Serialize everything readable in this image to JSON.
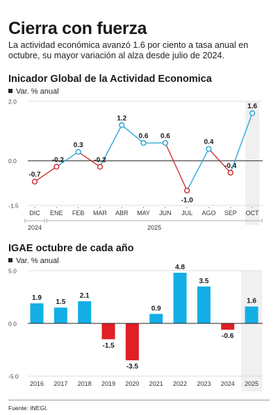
{
  "header": {
    "title": "Cierra con fuerza",
    "subtitle": "La actividad económica avanzó 1.6 por ciento a tasa anual en octubre, su mayor variación al alza desde julio de 2024."
  },
  "colors": {
    "positive_line": "#1fa3d6",
    "negative_line": "#cc2229",
    "positive_bar": "#14aee6",
    "negative_bar": "#e01f26",
    "highlight_band": "#f0f0f0"
  },
  "chart_data": [
    {
      "type": "line",
      "title": "Inicador Global de la Actividad Economica",
      "legend": "Var. % anual",
      "x": [
        "DIC",
        "ENE",
        "FEB",
        "MAR",
        "ABR",
        "MAY",
        "JUN",
        "JUL",
        "AGO",
        "SEP",
        "OCT"
      ],
      "values": [
        -0.7,
        -0.2,
        0.3,
        -0.2,
        1.2,
        0.6,
        0.6,
        -1.0,
        0.4,
        -0.4,
        1.6
      ],
      "data_labels": [
        "-0.7",
        "-0.2",
        "0.3",
        "-0.2",
        "1.2",
        "0.6",
        "0.6",
        "-1.0",
        "0.4",
        "-0.4",
        "1.6"
      ],
      "years": [
        {
          "label": "2024",
          "from": 0,
          "to": 0
        },
        {
          "label": "2025",
          "from": 1,
          "to": 10
        }
      ],
      "yticks": [
        "2.0",
        "0.0",
        "-1.5"
      ],
      "ylim": [
        -1.5,
        2.0
      ],
      "highlight_index": 10
    },
    {
      "type": "bar",
      "title": "IGAE octubre de cada año",
      "legend": "Var. % anual",
      "categories": [
        "2016",
        "2017",
        "2018",
        "2019",
        "2020",
        "2021",
        "2022",
        "2023",
        "2024",
        "2025"
      ],
      "values": [
        1.9,
        1.5,
        2.1,
        -1.5,
        -3.5,
        0.9,
        4.8,
        3.5,
        -0.6,
        1.6
      ],
      "data_labels": [
        "1.9",
        "1.5",
        "2.1",
        "-1.5",
        "-3.5",
        "0.9",
        "4.8",
        "3.5",
        "-0.6",
        "1.6"
      ],
      "yticks": [
        "5.0",
        "0.0",
        "-5.0"
      ],
      "ylim": [
        -5.0,
        5.0
      ],
      "highlight_index": 9
    }
  ],
  "footer": {
    "source": "Fuente: INEGI."
  }
}
